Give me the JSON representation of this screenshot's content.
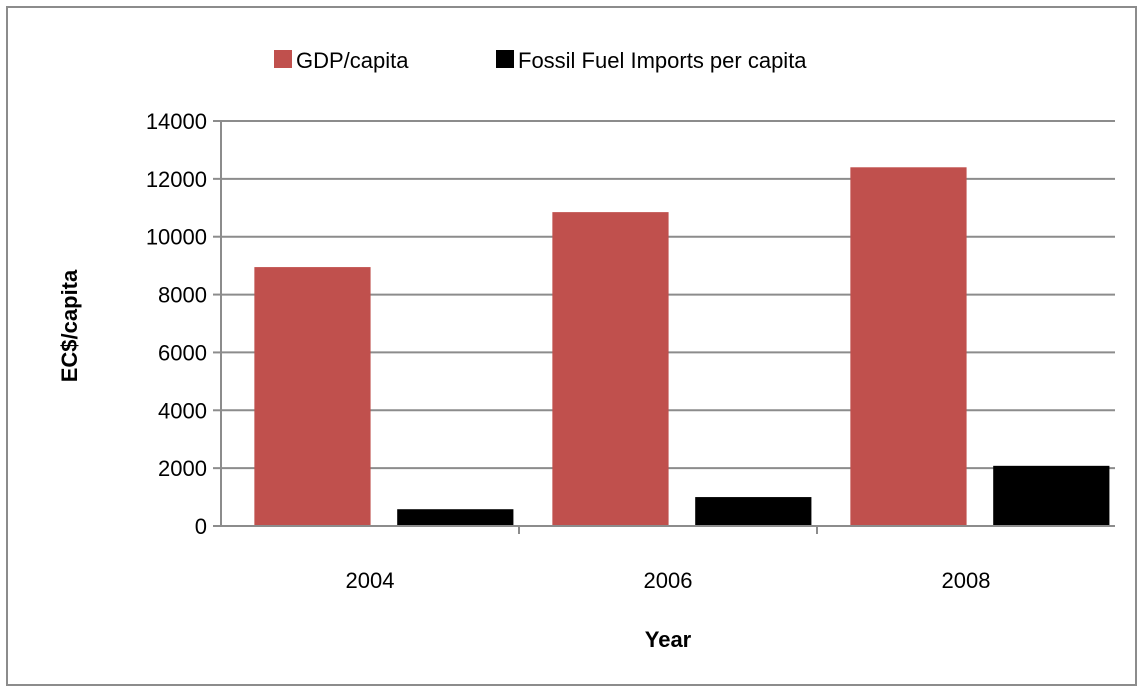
{
  "chart_data": {
    "type": "bar",
    "categories": [
      "2004",
      "2006",
      "2008"
    ],
    "series": [
      {
        "name": "GDP/capita",
        "color": "#c0504d",
        "values": [
          8950,
          10850,
          12400
        ]
      },
      {
        "name": "Fossil Fuel Imports per capita",
        "color": "#000000",
        "values": [
          580,
          1000,
          2080
        ]
      }
    ],
    "xlabel": "Year",
    "ylabel": "EC$/capita",
    "ylim": [
      0,
      14000
    ],
    "yticks": [
      0,
      2000,
      4000,
      6000,
      8000,
      10000,
      12000,
      14000
    ],
    "grid": true,
    "legend_position": "top"
  }
}
